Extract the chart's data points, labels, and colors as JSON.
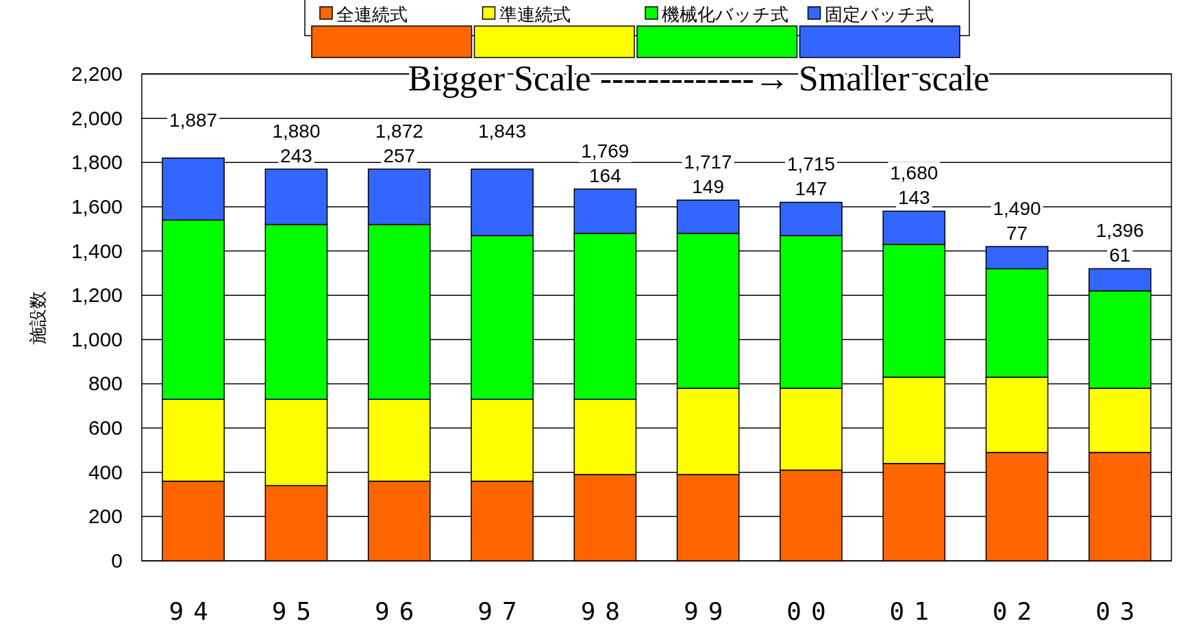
{
  "chart_data": {
    "type": "bar",
    "stacked": true,
    "ylabel": "施設数",
    "categories": [
      "94",
      "95",
      "96",
      "97",
      "98",
      "99",
      "00",
      "01",
      "02",
      "03"
    ],
    "series": [
      {
        "name": "全連続式",
        "color": "#ff6600",
        "values": [
          360,
          340,
          360,
          360,
          390,
          390,
          410,
          440,
          490,
          490
        ]
      },
      {
        "name": "準連続式",
        "color": "#ffff00",
        "values": [
          370,
          390,
          370,
          370,
          340,
          390,
          370,
          390,
          340,
          290
        ]
      },
      {
        "name": "機械化バッチ式",
        "color": "#00ff00",
        "values": [
          810,
          790,
          790,
          740,
          750,
          700,
          690,
          600,
          490,
          440
        ]
      },
      {
        "name": "固定バッチ式",
        "color": "#3366ff",
        "values": [
          280,
          250,
          250,
          300,
          200,
          150,
          150,
          150,
          100,
          100
        ]
      }
    ],
    "ylim": [
      0,
      2200
    ],
    "yticks": [
      0,
      {
        "value": 200,
        "label": "200"
      },
      {
        "value": 400,
        "label": "400"
      },
      {
        "value": 600,
        "label": "600"
      },
      {
        "value": 800,
        "label": "800"
      },
      {
        "value": 1000,
        "label": "1,000"
      },
      {
        "value": 1200,
        "label": "1,200"
      },
      {
        "value": 1400,
        "label": "1,400"
      },
      {
        "value": 1600,
        "label": "1,600"
      },
      {
        "value": 1800,
        "label": "1,800"
      },
      {
        "value": 2000,
        "label": "2,000"
      },
      {
        "value": 2200,
        "label": "2,200"
      }
    ],
    "grid": "y",
    "legend": "top",
    "annotations": [
      "Bigger Scale -------------→ Smaller scale",
      "1,887",
      "1,880",
      "1,872",
      "1,843",
      "1,769",
      "1,717",
      "1,715",
      "1,680",
      "1,490",
      "1,396",
      {
        "text": "243",
        "x": "95",
        "y": 1770
      },
      {
        "text": "257",
        "x": "96",
        "y": 1770
      },
      {
        "text": "164",
        "x": "98",
        "y": 1680
      },
      {
        "text": "149",
        "x": "99",
        "y": 1630
      },
      {
        "text": "147",
        "x": "00",
        "y": 1620
      },
      {
        "text": "143",
        "x": "01",
        "y": 1580
      },
      {
        "text": "77",
        "x": "02",
        "y": 1420
      },
      {
        "text": "61",
        "x": "03",
        "y": 1320
      }
    ]
  }
}
